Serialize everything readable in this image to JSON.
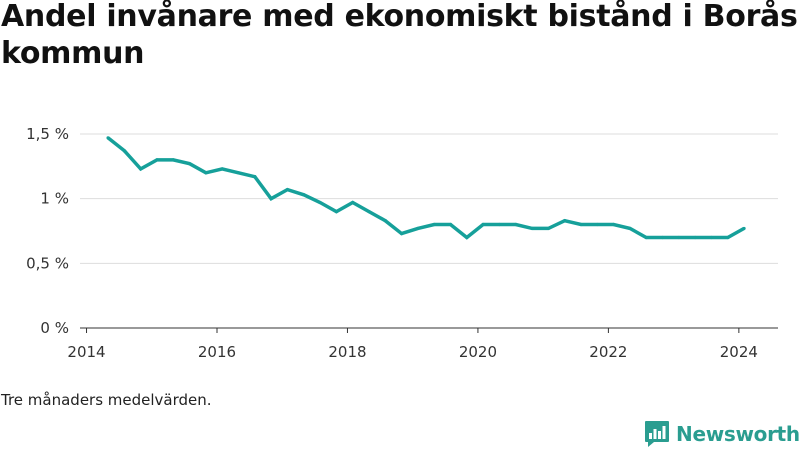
{
  "title": "Andel invånare med ekonomiskt bistånd i Borås kommun",
  "note": "Tre månaders medelvärden.",
  "brand": {
    "name": "Newsworthy",
    "icon": "newsworthy-logo-icon",
    "color": "#2a9d90"
  },
  "colors": {
    "line": "#16a09a",
    "grid": "#dddddd",
    "axis": "#333333",
    "text": "#333333"
  },
  "chart_data": {
    "type": "line",
    "title": "Andel invånare med ekonomiskt bistånd i Borås kommun",
    "xlabel": "",
    "ylabel": "",
    "xlim": [
      2013.9,
      2024.6
    ],
    "ylim": [
      0,
      1.5
    ],
    "y_ticks": [
      {
        "value": 0,
        "label": "0 %"
      },
      {
        "value": 0.5,
        "label": "0,5 %"
      },
      {
        "value": 1,
        "label": "1 %"
      },
      {
        "value": 1.5,
        "label": "1,5 %"
      }
    ],
    "x_ticks": [
      {
        "value": 2014,
        "label": "2014"
      },
      {
        "value": 2016,
        "label": "2016"
      },
      {
        "value": 2018,
        "label": "2018"
      },
      {
        "value": 2020,
        "label": "2020"
      },
      {
        "value": 2022,
        "label": "2022"
      },
      {
        "value": 2024,
        "label": "2024"
      }
    ],
    "grid": true,
    "legend": "none",
    "series": [
      {
        "x": [
          2014.33,
          2014.58,
          2014.83,
          2015.08,
          2015.33,
          2015.58,
          2015.83,
          2016.08,
          2016.33,
          2016.58,
          2016.83,
          2017.08,
          2017.33,
          2017.58,
          2017.83,
          2018.08,
          2018.33,
          2018.58,
          2018.83,
          2019.08,
          2019.33,
          2019.58,
          2019.83,
          2020.08,
          2020.33,
          2020.58,
          2020.83,
          2021.08,
          2021.33,
          2021.58,
          2021.83,
          2022.08,
          2022.33,
          2022.58,
          2022.83,
          2023.08,
          2023.33,
          2023.58,
          2023.83,
          2024.08
        ],
        "y": [
          1.47,
          1.37,
          1.23,
          1.3,
          1.3,
          1.27,
          1.2,
          1.23,
          1.2,
          1.17,
          1.0,
          1.07,
          1.03,
          0.97,
          0.9,
          0.97,
          0.9,
          0.83,
          0.73,
          0.77,
          0.8,
          0.8,
          0.7,
          0.8,
          0.8,
          0.8,
          0.77,
          0.77,
          0.83,
          0.8,
          0.8,
          0.8,
          0.77,
          0.7,
          0.7,
          0.7,
          0.7,
          0.7,
          0.7,
          0.77
        ]
      }
    ]
  }
}
